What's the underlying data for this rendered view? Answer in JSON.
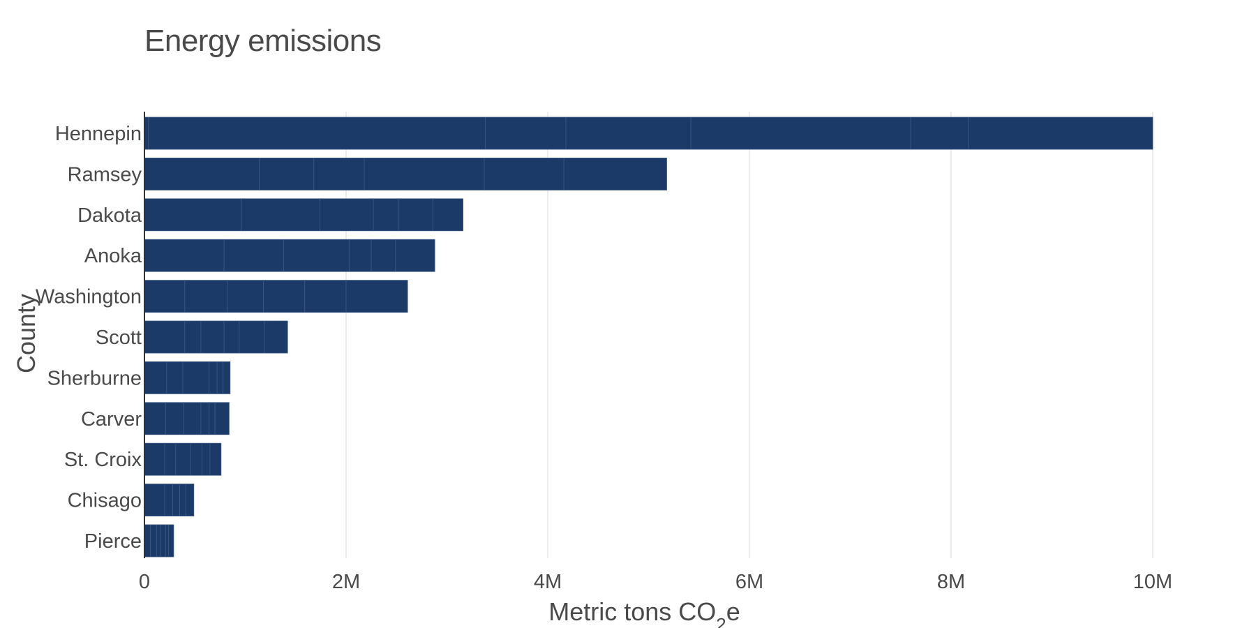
{
  "chart_data": {
    "type": "bar",
    "orientation": "horizontal",
    "stacked": true,
    "title": "Energy emissions",
    "xlabel": "Metric tons CO",
    "xlabel_subscript": "2",
    "xlabel_suffix": "e",
    "ylabel": "County",
    "xlim": [
      0,
      10000000
    ],
    "x_ticks": [
      {
        "value": 0,
        "label": "0"
      },
      {
        "value": 2000000,
        "label": "2M"
      },
      {
        "value": 4000000,
        "label": "4M"
      },
      {
        "value": 6000000,
        "label": "6M"
      },
      {
        "value": 8000000,
        "label": "8M"
      },
      {
        "value": 10000000,
        "label": "10M"
      }
    ],
    "grid": "vertical",
    "bar_color": "#1b3a68",
    "segment_line_color": "#3d5a85",
    "categories": [
      "Hennepin",
      "Ramsey",
      "Dakota",
      "Anoka",
      "Washington",
      "Scott",
      "Sherburne",
      "Carver",
      "St. Croix",
      "Chisago",
      "Pierce"
    ],
    "stack_segments": [
      [
        40000,
        3340000,
        800000,
        1240000,
        2180000,
        570000,
        1830000
      ],
      [
        1140000,
        540000,
        500000,
        1190000,
        790000,
        1020000
      ],
      [
        960000,
        780000,
        530000,
        250000,
        340000,
        300000
      ],
      [
        790000,
        590000,
        650000,
        220000,
        240000,
        390000
      ],
      [
        400000,
        420000,
        360000,
        410000,
        410000,
        610000
      ],
      [
        400000,
        160000,
        230000,
        150000,
        250000,
        230000
      ],
      [
        220000,
        160000,
        260000,
        80000,
        60000,
        70000
      ],
      [
        210000,
        180000,
        170000,
        80000,
        60000,
        140000
      ],
      [
        200000,
        110000,
        150000,
        110000,
        80000,
        110000
      ],
      [
        200000,
        80000,
        70000,
        60000,
        80000
      ],
      [
        60000,
        60000,
        40000,
        50000,
        30000,
        50000
      ]
    ],
    "totals": [
      10000000,
      5180000,
      3160000,
      2880000,
      2610000,
      1420000,
      850000,
      840000,
      760000,
      490000,
      290000
    ]
  }
}
